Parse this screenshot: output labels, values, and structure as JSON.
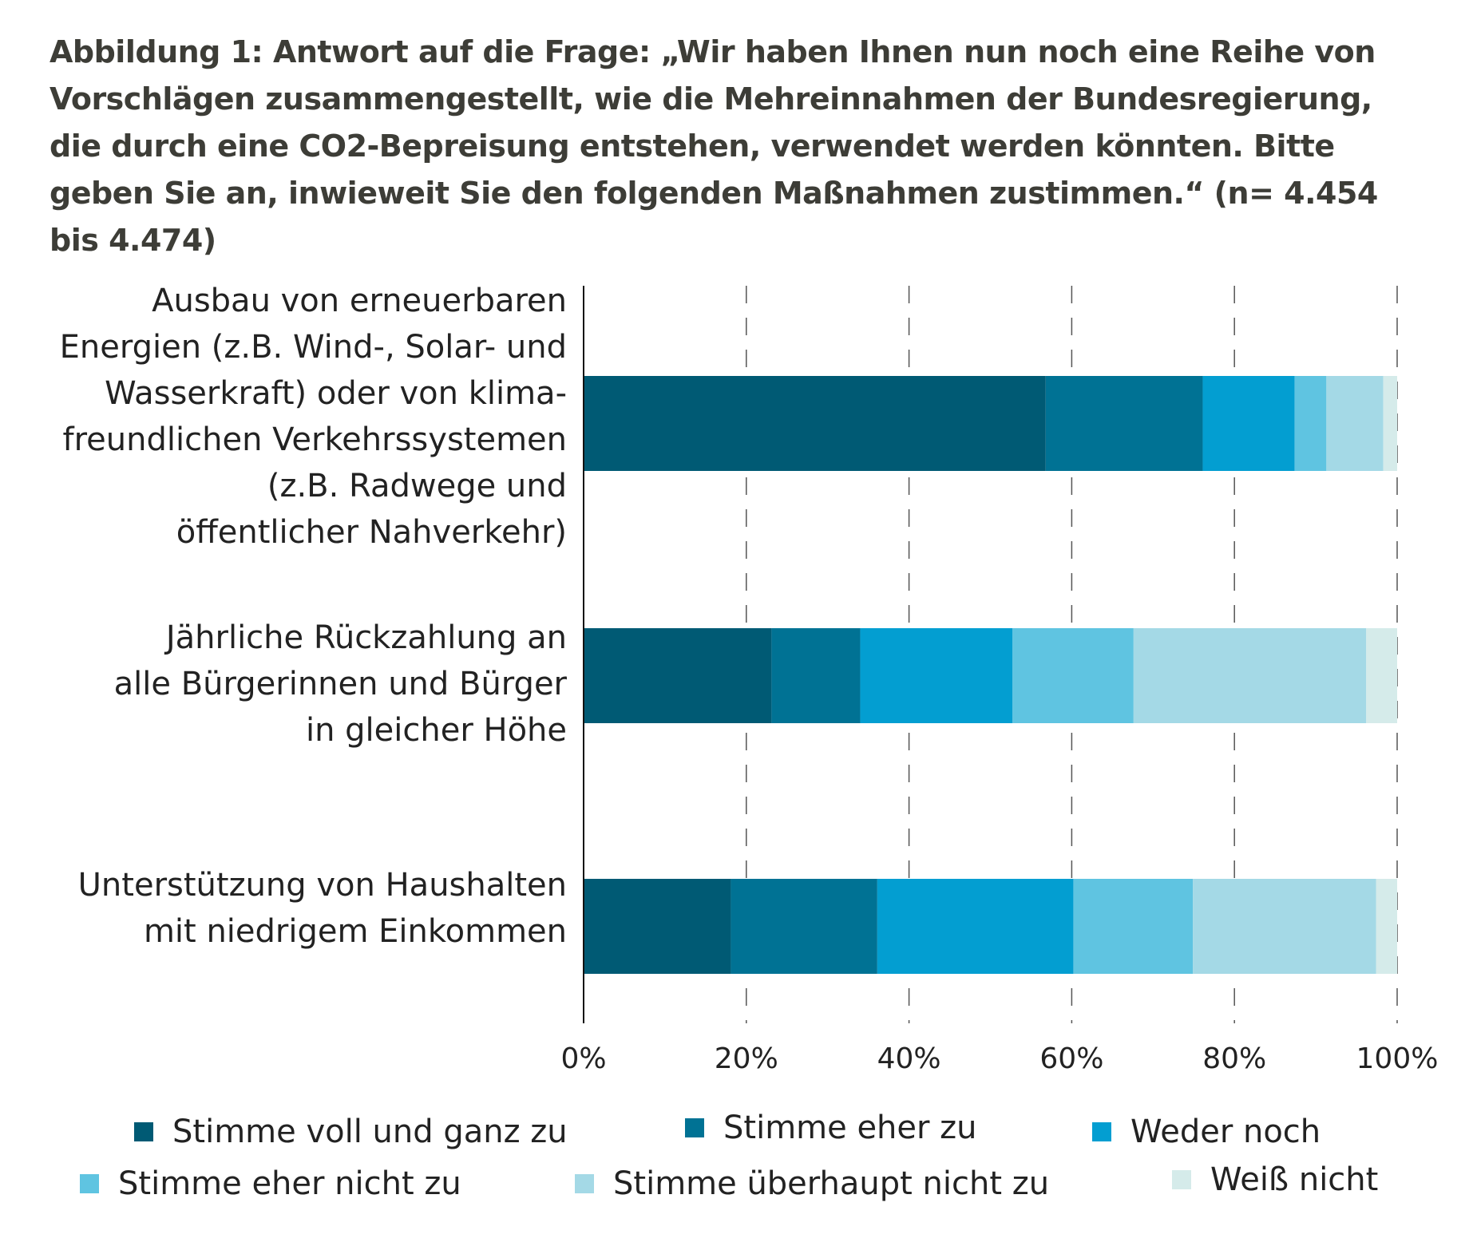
{
  "title": "Abbildung 1: Antwort auf die Frage: „Wir haben Ihnen nun noch eine Reihe von Vorschlägen zusammengestellt, wie die Mehreinnahmen der Bundesregierung, die durch eine CO2-Bepreisung entstehen, verwendet werden könnten. Bitte geben Sie an, inwieweit Sie den folgenden Maßnahmen zustimmen.“ (n= 4.454 bis 4.474)",
  "chart_data": {
    "type": "bar",
    "orientation": "horizontal",
    "stacked": true,
    "categories": [
      "Ausbau von erneuerbaren Energien (z.B. Wind-, Solar- und Wasserkraft) oder von klima-freundlichen Verkehrssystemen (z.B. Radwege und öffentlicher Nahverkehr)",
      "Jährliche  Rückzahlung an alle Bürgerinnen und Bürger in gleicher Höhe",
      "Unterstützung von Haushalten mit niedrigem Einkommen"
    ],
    "category_lines": [
      [
        "Ausbau von erneuerbaren",
        "Energien (z.B. Wind-, Solar- und",
        "Wasserkraft) oder von klima-",
        "freundlichen Verkehrssystemen",
        "(z.B. Radwege und",
        "öffentlicher Nahverkehr)"
      ],
      [
        "Jährliche  Rückzahlung an",
        "alle Bürgerinnen und Bürger",
        "in gleicher Höhe"
      ],
      [
        "Unterstützung von Haushalten",
        "mit niedrigem Einkommen"
      ]
    ],
    "series": [
      {
        "name": "Stimme voll und ganz zu",
        "color": "#005a74",
        "values": [
          56.8,
          23.1,
          18.1
        ]
      },
      {
        "name": "Stimme eher zu",
        "color": "#007294",
        "values": [
          19.3,
          10.9,
          18.0
        ]
      },
      {
        "name": "Weder noch",
        "color": "#039ed1",
        "values": [
          11.3,
          18.7,
          24.1
        ]
      },
      {
        "name": "Stimme eher nicht zu",
        "color": "#5fc4e1",
        "values": [
          3.9,
          14.9,
          14.7
        ]
      },
      {
        "name": "Stimme überhaupt nicht zu",
        "color": "#a4d9e6",
        "values": [
          7.0,
          28.6,
          22.5
        ]
      },
      {
        "name": "Weiß nicht",
        "color": "#d5ebea",
        "values": [
          1.7,
          3.8,
          2.6
        ]
      }
    ],
    "xlim": [
      0,
      100
    ],
    "xticks": [
      "0%",
      "20%",
      "40%",
      "60%",
      "80%",
      "100%"
    ],
    "grid": "vertical dashed",
    "legend": "bottom"
  }
}
